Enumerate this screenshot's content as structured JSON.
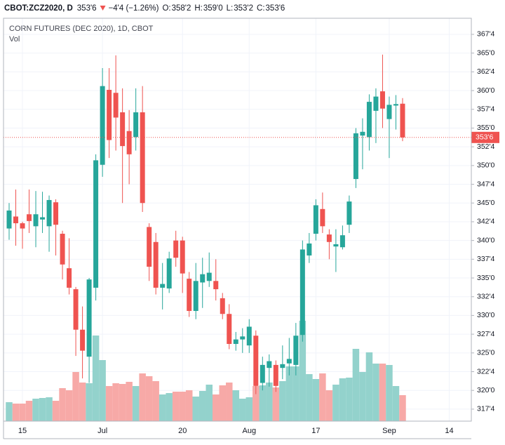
{
  "header": {
    "symbol": "CBOT:ZCZ2020, D",
    "last": "353'6",
    "change": "−4'4 (−1.26%)",
    "ohlc": [
      {
        "label": "O:",
        "value": "358'2"
      },
      {
        "label": "H:",
        "value": "359'0"
      },
      {
        "label": "L:",
        "value": "353'2"
      },
      {
        "label": "C:",
        "value": "353'6"
      }
    ]
  },
  "chart_data": {
    "type": "candlestick",
    "title": "CORN FUTURES (DEC 2020), 1D, CBOT",
    "volume_label": "Vol",
    "up_color": "#26a69a",
    "down_color": "#ef5350",
    "up_volume_color": "#93d2cc",
    "down_volume_color": "#f7a9a7",
    "grid": true,
    "ylim": [
      315.9,
      369.65
    ],
    "yticks": [
      {
        "value": 317.5,
        "label": "317'4"
      },
      {
        "value": 320,
        "label": "320'0"
      },
      {
        "value": 322.5,
        "label": "322'4"
      },
      {
        "value": 325,
        "label": "325'0"
      },
      {
        "value": 327.5,
        "label": "327'4"
      },
      {
        "value": 330,
        "label": "330'0"
      },
      {
        "value": 332.5,
        "label": "332'4"
      },
      {
        "value": 335,
        "label": "335'0"
      },
      {
        "value": 337.5,
        "label": "337'4"
      },
      {
        "value": 340,
        "label": "340'0"
      },
      {
        "value": 342.5,
        "label": "342'4"
      },
      {
        "value": 345,
        "label": "345'0"
      },
      {
        "value": 347.5,
        "label": "347'4"
      },
      {
        "value": 350,
        "label": "350'0"
      },
      {
        "value": 352.5,
        "label": "352'4"
      },
      {
        "value": 355,
        "label": "355'0"
      },
      {
        "value": 357.5,
        "label": "357'4"
      },
      {
        "value": 360,
        "label": "360'0"
      },
      {
        "value": 362.5,
        "label": "362'4"
      },
      {
        "value": 365,
        "label": "365'0"
      },
      {
        "value": 367.5,
        "label": "367'4"
      }
    ],
    "last_price": {
      "value": 353.75,
      "label": "353'6"
    },
    "vlim": [
      0,
      150
    ],
    "categories": [
      null,
      null,
      "15",
      null,
      null,
      null,
      null,
      null,
      null,
      null,
      null,
      null,
      null,
      null,
      "Jul",
      null,
      null,
      null,
      null,
      null,
      null,
      null,
      null,
      null,
      null,
      null,
      "20",
      null,
      null,
      null,
      null,
      null,
      null,
      null,
      null,
      null,
      "Aug",
      null,
      null,
      null,
      null,
      null,
      null,
      null,
      null,
      null,
      "17",
      null,
      null,
      null,
      null,
      null,
      null,
      null,
      null,
      null,
      null,
      "Sep",
      null,
      null,
      null,
      null,
      null,
      null,
      null,
      null,
      "14"
    ],
    "open": [
      341.6,
      343.2,
      342.3,
      343.5,
      341.9,
      342.8,
      341.9,
      345.1,
      340.9,
      336.3,
      333.5,
      328.1,
      324.5,
      333.7,
      350.1,
      360.1,
      359.7,
      357.1,
      354.6,
      353.8,
      357.1,
      341.8,
      339.8,
      333.7,
      333.6,
      340.0,
      340.0,
      334.9,
      330.6,
      334.4,
      334.6,
      334.6,
      332.3,
      330.2,
      326.2,
      326.8,
      326.0,
      327.3,
      321.0,
      323.0,
      323.4,
      323.0,
      323.6,
      323.4,
      327.4,
      338.0,
      340.9,
      344.2,
      340.8,
      339.2,
      339.1,
      342.1,
      348.2,
      354.0,
      353.8,
      357.3,
      359.9,
      356.2,
      358.0,
      358.25,
      null,
      null,
      null,
      null,
      null,
      null,
      null
    ],
    "high": [
      345.0,
      346.8,
      342.5,
      346.8,
      346.6,
      346.5,
      346.0,
      345.5,
      341.3,
      340.3,
      333.8,
      331.2,
      335.0,
      351.5,
      363.0,
      363.0,
      364.7,
      360.3,
      357.4,
      360.3,
      360.6,
      342.3,
      341.0,
      337.0,
      338.5,
      341.3,
      340.5,
      335.8,
      337.0,
      337.7,
      338.4,
      337.5,
      333.0,
      331.5,
      327.8,
      328.3,
      329.5,
      328.0,
      324.5,
      324.8,
      324.0,
      326.0,
      327.0,
      329.0,
      340.0,
      341.0,
      345.5,
      346.4,
      341.5,
      341.5,
      342.0,
      346.0,
      355.0,
      356.3,
      359.5,
      360.3,
      364.8,
      359.2,
      359.4,
      359.0,
      null,
      null,
      null,
      null,
      null,
      null,
      null
    ],
    "low": [
      340.1,
      339.3,
      338.9,
      341.0,
      339.1,
      341.0,
      338.5,
      338.0,
      334.8,
      332.8,
      324.6,
      321.6,
      321.0,
      332.0,
      348.5,
      351.0,
      352.0,
      345.0,
      347.5,
      352.0,
      343.8,
      334.6,
      332.8,
      330.8,
      333.0,
      336.5,
      333.0,
      329.8,
      329.5,
      331.0,
      333.8,
      332.0,
      329.5,
      325.5,
      325.3,
      325.0,
      325.0,
      319.5,
      320.0,
      320.5,
      319.8,
      321.5,
      322.0,
      322.0,
      326.5,
      337.0,
      340.0,
      341.0,
      337.5,
      335.8,
      338.8,
      341.0,
      347.0,
      349.5,
      352.0,
      353.0,
      355.0,
      351.0,
      354.8,
      353.25,
      null,
      null,
      null,
      null,
      null,
      null,
      null
    ],
    "close": [
      344.0,
      342.3,
      341.6,
      342.6,
      343.5,
      343.1,
      345.4,
      342.1,
      336.8,
      333.7,
      328.1,
      325.3,
      334.8,
      350.7,
      360.6,
      353.4,
      356.4,
      352.6,
      351.5,
      357.1,
      345.0,
      336.5,
      333.7,
      334.2,
      337.6,
      337.7,
      335.6,
      330.6,
      334.6,
      335.5,
      335.7,
      333.5,
      330.2,
      326.2,
      326.8,
      327.2,
      328.5,
      320.6,
      323.4,
      323.9,
      320.6,
      323.5,
      324.2,
      327.3,
      338.8,
      339.6,
      344.7,
      341.9,
      339.8,
      339.5,
      340.7,
      345.2,
      354.3,
      354.5,
      358.5,
      359.2,
      357.6,
      358.1,
      358.2,
      353.75,
      null,
      null,
      null,
      null,
      null,
      null,
      null
    ],
    "volume": [
      27,
      25,
      25,
      29,
      32,
      33,
      34,
      29,
      47,
      44,
      70,
      55,
      54,
      122,
      87,
      50,
      54,
      53,
      56,
      50,
      68,
      64,
      57,
      38,
      40,
      42,
      42,
      44,
      35,
      43,
      52,
      38,
      51,
      55,
      44,
      32,
      34,
      50,
      51,
      55,
      48,
      57,
      78,
      78,
      143,
      67,
      60,
      68,
      44,
      52,
      61,
      62,
      103,
      70,
      98,
      82,
      82,
      80,
      50,
      37,
      null,
      null,
      null,
      null,
      null,
      null,
      null
    ]
  }
}
